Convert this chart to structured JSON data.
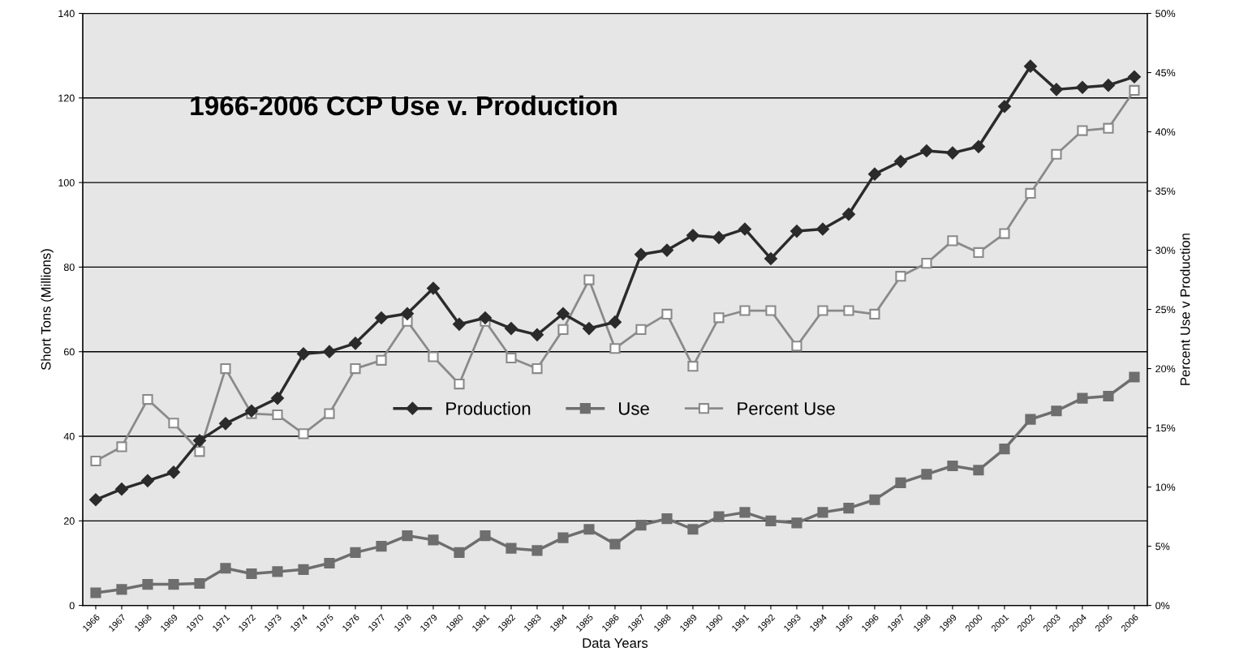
{
  "chart_data": {
    "type": "line",
    "title": "1966-2006 CCP Use v. Production",
    "xlabel": "Data Years",
    "ylabel": "Short Tons (Millions)",
    "y2label": "Percent Use v Production",
    "categories": [
      "1966",
      "1967",
      "1968",
      "1969",
      "1970",
      "1971",
      "1972",
      "1973",
      "1974",
      "1975",
      "1976",
      "1977",
      "1978",
      "1979",
      "1980",
      "1981",
      "1982",
      "1983",
      "1984",
      "1985",
      "1986",
      "1987",
      "1988",
      "1989",
      "1990",
      "1991",
      "1992",
      "1993",
      "1994",
      "1995",
      "1996",
      "1997",
      "1998",
      "1999",
      "2000",
      "2001",
      "2002",
      "2003",
      "2004",
      "2005",
      "2006"
    ],
    "series": [
      {
        "name": "Production",
        "color": "#2b2b2b",
        "marker": "diamond",
        "values": [
          25,
          27.5,
          29.5,
          31.5,
          39,
          43,
          46,
          49,
          59.5,
          60,
          62,
          68,
          69,
          75,
          66.5,
          68,
          65.5,
          64,
          69,
          65.5,
          67,
          83,
          84,
          87.5,
          87,
          89,
          82,
          88.5,
          89,
          92.5,
          102,
          105,
          107.5,
          107,
          108.5,
          118,
          127.5,
          122,
          122.5,
          123,
          125
        ]
      },
      {
        "name": "Use",
        "color": "#6e6e6e",
        "marker": "square",
        "values": [
          3,
          3.8,
          5,
          5,
          5.2,
          8.8,
          7.5,
          8,
          8.5,
          10,
          12.5,
          14,
          16.5,
          15.5,
          12.5,
          16.5,
          13.5,
          13,
          16,
          18,
          14.5,
          19,
          20.5,
          18,
          21,
          22,
          20,
          19.5,
          22,
          23,
          25,
          29,
          31,
          33,
          32,
          37,
          44,
          46,
          49,
          49.5,
          54
        ]
      },
      {
        "name": "Percent Use",
        "color": "#8a8a8a",
        "marker": "square",
        "axis": "y2",
        "values": [
          12.2,
          13.4,
          17.4,
          15.4,
          13.0,
          20.0,
          16.2,
          16.1,
          14.5,
          16.2,
          20.0,
          20.7,
          24.0,
          21.0,
          18.7,
          24.0,
          20.9,
          20.0,
          23.3,
          27.5,
          21.7,
          23.3,
          24.6,
          20.2,
          24.3,
          24.9,
          24.9,
          21.9,
          24.9,
          24.9,
          24.6,
          27.8,
          28.9,
          30.8,
          29.8,
          31.4,
          34.8,
          38.1,
          40.1,
          40.3,
          43.5
        ]
      }
    ],
    "ylim": [
      0,
      140
    ],
    "yticks": [
      0,
      20,
      40,
      60,
      80,
      100,
      120,
      140
    ],
    "y2lim": [
      0,
      50
    ],
    "y2ticks": [
      {
        "value": 0,
        "label": "0%"
      },
      {
        "value": 5,
        "label": "5%"
      },
      {
        "value": 10,
        "label": "10%"
      },
      {
        "value": 15,
        "label": "15%"
      },
      {
        "value": 20,
        "label": "20%"
      },
      {
        "value": 25,
        "label": "25%"
      },
      {
        "value": 30,
        "label": "30%"
      },
      {
        "value": 35,
        "label": "35%"
      },
      {
        "value": 40,
        "label": "40%"
      },
      {
        "value": 45,
        "label": "45%"
      },
      {
        "value": 50,
        "label": "50%"
      }
    ],
    "grid": "y",
    "legend": "center",
    "line_style": "solid"
  }
}
